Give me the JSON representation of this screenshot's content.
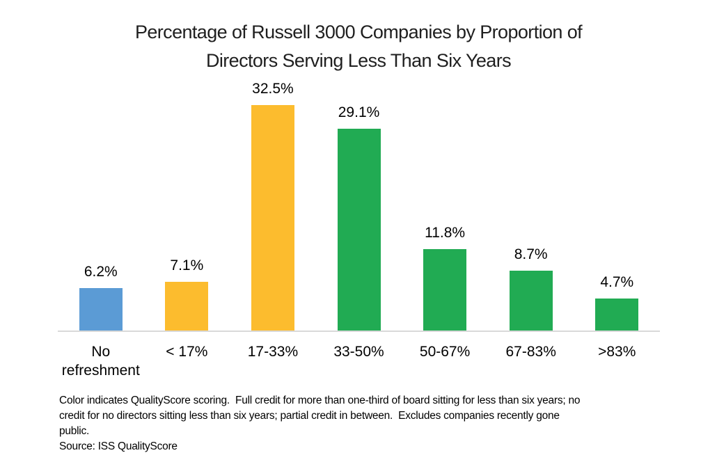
{
  "chart_data": {
    "type": "bar",
    "title": "Percentage of Russell 3000 Companies by Proportion of Directors Serving Less Than Six Years",
    "title_lines": [
      "Percentage of Russell 3000 Companies by Proportion of",
      "Directors Serving Less Than Six Years"
    ],
    "categories": [
      "No refreshment",
      "< 17%",
      "17-33%",
      "33-50%",
      "50-67%",
      "67-83%",
      ">83%"
    ],
    "values": [
      6.2,
      7.1,
      32.5,
      29.1,
      11.8,
      8.7,
      4.7
    ],
    "value_labels": [
      "6.2%",
      "7.1%",
      "32.5%",
      "29.1%",
      "11.8%",
      "8.7%",
      "4.7%"
    ],
    "bar_colors": [
      "#5B9BD5",
      "#FCBC2E",
      "#FCBC2E",
      "#21AB53",
      "#21AB53",
      "#21AB53",
      "#21AB53"
    ],
    "color_meaning": {
      "blue": "#5B9BD5",
      "yellow": "#FCBC2E",
      "green": "#21AB53",
      "axis_line": "#D9D9D9"
    },
    "xlabel": "",
    "ylabel": "",
    "ylim": [
      0,
      35
    ],
    "grid": false,
    "legend_position": "none"
  },
  "footnote": {
    "lines": [
      "Color indicates QualityScore scoring.  Full credit for more than one-third of board sitting for less than six years; no",
      "credit for no directors sitting less than six years; partial credit in between.  Excludes companies recently gone",
      "public."
    ],
    "source": "Source: ISS QualityScore"
  }
}
